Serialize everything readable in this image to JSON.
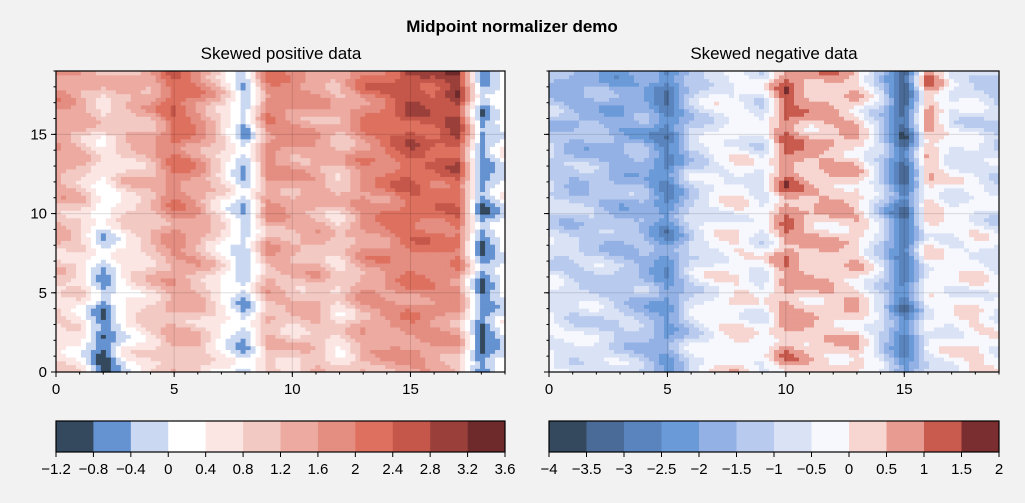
{
  "chart_data": {
    "title": "Midpoint normalizer demo",
    "panels": [
      {
        "type": "heatmap",
        "title": "Skewed positive data",
        "xlim": [
          0,
          19
        ],
        "ylim": [
          0,
          19
        ],
        "xticks": [
          "0",
          "5",
          "10",
          "15"
        ],
        "xtick_values": [
          0,
          5,
          10,
          15
        ],
        "yticks": [
          "0",
          "5",
          "10",
          "15"
        ],
        "ytick_values": [
          0,
          5,
          10,
          15
        ],
        "grid": true,
        "colorbar": {
          "levels": [
            -1.2,
            -0.8,
            -0.4,
            0,
            0.4,
            0.8,
            1.2,
            1.6,
            2,
            2.4,
            2.8,
            3.2,
            3.6
          ],
          "tick_labels": [
            "−1.2",
            "−0.8",
            "−0.4",
            "0",
            "0.4",
            "0.8",
            "1.2",
            "1.6",
            "2",
            "2.4",
            "2.8",
            "3.2",
            "3.6"
          ],
          "colors": [
            "#34495e",
            "#6592d0",
            "#cbd8f2",
            "#ffffff",
            "#fbe6e4",
            "#f3c9c3",
            "#ecaaa1",
            "#e48d81",
            "#de705f",
            "#c4564a",
            "#9b3f3a",
            "#6e2a2b"
          ]
        },
        "column_profile": {
          "x": [
            0,
            1,
            2,
            3,
            4,
            5,
            6,
            7,
            8,
            9,
            10,
            11,
            12,
            13,
            14,
            15,
            16,
            17,
            18,
            19
          ],
          "low_y_values": [
            0.6,
            0.4,
            -1.1,
            0.2,
            0.7,
            1.1,
            1.0,
            0.3,
            -0.3,
            1.1,
            0.8,
            1.1,
            0.5,
            1.3,
            1.4,
            1.6,
            1.5,
            1.2,
            -0.9,
            0.1
          ],
          "high_y_values": [
            1.8,
            1.5,
            1.1,
            1.3,
            1.4,
            2.5,
            1.9,
            1.0,
            -0.4,
            2.0,
            1.8,
            1.6,
            1.3,
            2.0,
            2.3,
            2.9,
            2.6,
            3.2,
            -0.5,
            0.3
          ]
        }
      },
      {
        "type": "heatmap",
        "title": "Skewed negative data",
        "xlim": [
          0,
          19
        ],
        "ylim": [
          0,
          19
        ],
        "xticks": [
          "0",
          "5",
          "10",
          "15"
        ],
        "xtick_values": [
          0,
          5,
          10,
          15
        ],
        "yticks": [
          "0",
          "5",
          "10",
          "15"
        ],
        "ytick_values": [
          0,
          5,
          10,
          15
        ],
        "grid": true,
        "colorbar": {
          "levels": [
            -4,
            -3.5,
            -3,
            -2.5,
            -2,
            -1.5,
            -1,
            -0.5,
            0,
            0.5,
            1,
            1.5,
            2
          ],
          "tick_labels": [
            "−4",
            "−3.5",
            "−3",
            "−2.5",
            "−2",
            "−1.5",
            "−1",
            "−0.5",
            "0",
            "0.5",
            "1",
            "1.5",
            "2"
          ],
          "colors": [
            "#34495e",
            "#4a6a97",
            "#5a84bd",
            "#6a9ad7",
            "#93b1e4",
            "#b8cbee",
            "#dae3f6",
            "#f6f8fd",
            "#f7d5d1",
            "#e79b91",
            "#c85a4e",
            "#7a2e2f"
          ]
        },
        "column_profile": {
          "x": [
            0,
            1,
            2,
            3,
            4,
            5,
            6,
            7,
            8,
            9,
            10,
            11,
            12,
            13,
            14,
            15,
            16,
            17,
            18,
            19
          ],
          "low_y_values": [
            -0.3,
            -0.6,
            -0.6,
            -0.9,
            -1.3,
            -2.0,
            -0.7,
            -0.2,
            0.1,
            -0.4,
            0.6,
            0.3,
            0.2,
            0.3,
            -0.8,
            -2.6,
            -0.7,
            -0.3,
            0.2,
            -0.3
          ],
          "high_y_values": [
            -1.4,
            -1.8,
            -1.7,
            -2.1,
            -1.7,
            -3.0,
            -1.2,
            -0.6,
            -0.3,
            -0.8,
            1.3,
            0.5,
            0.6,
            0.3,
            -1.1,
            -3.6,
            1.0,
            -0.6,
            -0.8,
            -1.2
          ]
        }
      }
    ]
  }
}
